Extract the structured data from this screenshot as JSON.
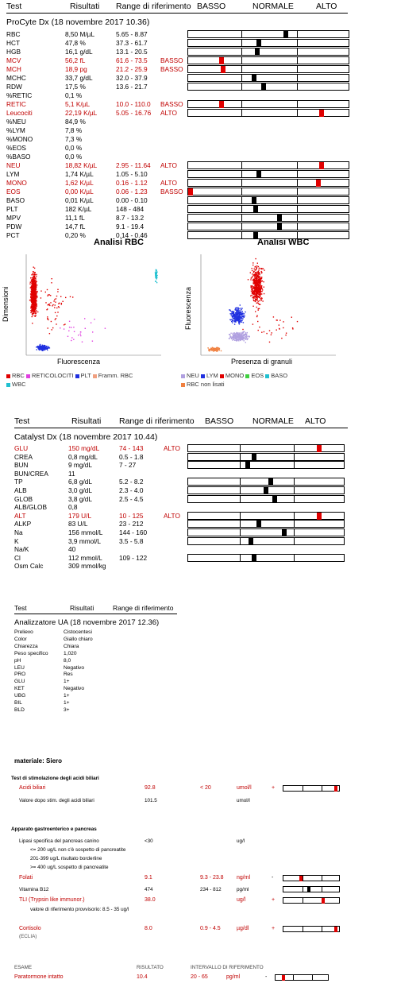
{
  "header1": {
    "test": "Test",
    "results": "Risultati",
    "range": "Range di riferimento",
    "low": "BASSO",
    "normal": "NORMALE",
    "high": "ALTO"
  },
  "procyte": {
    "title": "ProCyte Dx (18 novembre 2017 10.36)",
    "rows": [
      {
        "name": "RBC",
        "value": "8,50 M/µL",
        "range": "5.65 - 8.87",
        "flag": "",
        "marker": 0.61,
        "red": false
      },
      {
        "name": "HCT",
        "value": "47,8 %",
        "range": "37.3 - 61.7",
        "flag": "",
        "marker": 0.44,
        "red": false
      },
      {
        "name": "HGB",
        "value": "16,1 g/dL",
        "range": "13.1 - 20.5",
        "flag": "",
        "marker": 0.43,
        "red": false
      },
      {
        "name": "MCV",
        "value": "56,2 fL",
        "range": "61.6 - 73.5",
        "flag": "BASSO",
        "marker": 0.2,
        "red": true
      },
      {
        "name": "MCH",
        "value": "18,9 pg",
        "range": "21.2 - 25.9",
        "flag": "BASSO",
        "marker": 0.21,
        "red": true
      },
      {
        "name": "MCHC",
        "value": "33,7 g/dL",
        "range": "32.0 - 37.9",
        "flag": "",
        "marker": 0.41,
        "red": false
      },
      {
        "name": "RDW",
        "value": "17,5 %",
        "range": "13.6 - 21.7",
        "flag": "",
        "marker": 0.47,
        "red": false
      },
      {
        "name": "%RETIC",
        "value": "0,1 %",
        "range": "",
        "flag": "",
        "marker": null,
        "red": false
      },
      {
        "name": "RETIC",
        "value": "5,1 K/µL",
        "range": "10.0 - 110.0",
        "flag": "BASSO",
        "marker": 0.2,
        "red": true
      },
      {
        "name": "Leucociti",
        "value": "22,19 K/µL",
        "range": "5.05 - 16.76",
        "flag": "ALTO",
        "marker": 0.84,
        "red": true
      },
      {
        "name": "%NEU",
        "value": "84,9 %",
        "range": "",
        "flag": "",
        "marker": null,
        "red": false
      },
      {
        "name": "%LYM",
        "value": "7,8 %",
        "range": "",
        "flag": "",
        "marker": null,
        "red": false
      },
      {
        "name": "%MONO",
        "value": "7,3 %",
        "range": "",
        "flag": "",
        "marker": null,
        "red": false
      },
      {
        "name": "%EOS",
        "value": "0,0 %",
        "range": "",
        "flag": "",
        "marker": null,
        "red": false
      },
      {
        "name": "%BASO",
        "value": "0,0 %",
        "range": "",
        "flag": "",
        "marker": null,
        "red": false
      },
      {
        "name": "NEU",
        "value": "18,82 K/µL",
        "range": "2.95 - 11.64",
        "flag": "ALTO",
        "marker": 0.84,
        "red": true
      },
      {
        "name": "LYM",
        "value": "1,74 K/µL",
        "range": "1.05 - 5.10",
        "flag": "",
        "marker": 0.44,
        "red": false
      },
      {
        "name": "MONO",
        "value": "1,62 K/µL",
        "range": "0.16 - 1.12",
        "flag": "ALTO",
        "marker": 0.82,
        "red": true
      },
      {
        "name": "EOS",
        "value": "0,00 K/µL",
        "range": "0.06 - 1.23",
        "flag": "BASSO",
        "marker": 0.0,
        "red": true
      },
      {
        "name": "BASO",
        "value": "0,01 K/µL",
        "range": "0.00 - 0.10",
        "flag": "",
        "marker": 0.41,
        "red": false
      },
      {
        "name": "PLT",
        "value": "182 K/µL",
        "range": "148 - 484",
        "flag": "",
        "marker": 0.42,
        "red": false
      },
      {
        "name": "MPV",
        "value": "11,1 fL",
        "range": "8.7 - 13.2",
        "flag": "",
        "marker": 0.57,
        "red": false
      },
      {
        "name": "PDW",
        "value": "14,7 fL",
        "range": "9.1 - 19.4",
        "flag": "",
        "marker": 0.57,
        "red": false
      },
      {
        "name": "PCT",
        "value": "0,20 %",
        "range": "0.14 - 0.46",
        "flag": "",
        "marker": 0.42,
        "red": false
      }
    ]
  },
  "rbc_plot": {
    "title": "Analisi RBC",
    "ylabel": "Dimensioni",
    "xlabel": "Fluorescenza",
    "legend": [
      {
        "label": "RBC",
        "color": "#e00000"
      },
      {
        "label": "RETICOLOCITI",
        "color": "#e040e0"
      },
      {
        "label": "PLT",
        "color": "#2030e0"
      },
      {
        "label": "Framm. RBC",
        "color": "#f0a080"
      },
      {
        "label": "WBC",
        "color": "#20c0d0"
      }
    ]
  },
  "wbc_plot": {
    "title": "Analisi WBC",
    "ylabel": "Fluorescenza",
    "xlabel": "Presenza di granuli",
    "legend": [
      {
        "label": "NEU",
        "color": "#b0a0e0"
      },
      {
        "label": "LYM",
        "color": "#2030e0"
      },
      {
        "label": "MONO",
        "color": "#e00000"
      },
      {
        "label": "EOS",
        "color": "#40d040"
      },
      {
        "label": "BASO",
        "color": "#20c0d0"
      },
      {
        "label": "RBC non lisati",
        "color": "#f08040"
      }
    ]
  },
  "header2": {
    "test": "Test",
    "results": "Risultati",
    "range": "Range di riferimento",
    "low": "BASSO",
    "normal": "NORMALE",
    "high": "ALTO"
  },
  "catalyst": {
    "title": "Catalyst Dx (18 novembre 2017 10.44)",
    "rows": [
      {
        "name": "GLU",
        "value": "150 mg/dL",
        "range": "74 - 143",
        "flag": "ALTO",
        "marker": 0.85,
        "red": true
      },
      {
        "name": "CREA",
        "value": "0,8 mg/dL",
        "range": "0.5 - 1.8",
        "flag": "",
        "marker": 0.42,
        "red": false
      },
      {
        "name": "BUN",
        "value": "9 mg/dL",
        "range": "7 - 27",
        "flag": "",
        "marker": 0.38,
        "red": false
      },
      {
        "name": "BUN/CREA",
        "value": "11",
        "range": "",
        "flag": "",
        "marker": null,
        "red": false
      },
      {
        "name": "TP",
        "value": "6,8 g/dL",
        "range": "5.2 - 8.2",
        "flag": "",
        "marker": 0.53,
        "red": false
      },
      {
        "name": "ALB",
        "value": "3,0 g/dL",
        "range": "2.3 - 4.0",
        "flag": "",
        "marker": 0.5,
        "red": false
      },
      {
        "name": "GLOB",
        "value": "3,8 g/dL",
        "range": "2.5 - 4.5",
        "flag": "",
        "marker": 0.56,
        "red": false
      },
      {
        "name": "ALB/GLOB",
        "value": "0,8",
        "range": "",
        "flag": "",
        "marker": null,
        "red": false
      },
      {
        "name": "ALT",
        "value": "179 U/L",
        "range": "10 - 125",
        "flag": "ALTO",
        "marker": 0.85,
        "red": true
      },
      {
        "name": "ALKP",
        "value": "83 U/L",
        "range": "23 - 212",
        "flag": "",
        "marker": 0.45,
        "red": false
      },
      {
        "name": "Na",
        "value": "156 mmol/L",
        "range": "144 - 160",
        "flag": "",
        "marker": 0.62,
        "red": false
      },
      {
        "name": "K",
        "value": "3,9 mmol/L",
        "range": "3.5 - 5.8",
        "flag": "",
        "marker": 0.4,
        "red": false
      },
      {
        "name": "Na/K",
        "value": "40",
        "range": "",
        "flag": "",
        "marker": null,
        "red": false
      },
      {
        "name": "Cl",
        "value": "112 mmol/L",
        "range": "109 - 122",
        "flag": "",
        "marker": 0.42,
        "red": false
      },
      {
        "name": "Osm Calc",
        "value": "309 mmol/kg",
        "range": "",
        "flag": "",
        "marker": null,
        "red": false
      }
    ]
  },
  "header3": {
    "test": "Test",
    "results": "Risultati",
    "range": "Range di riferimento"
  },
  "ua": {
    "title": "Analizzatore UA (18 novembre 2017 12.36)",
    "rows": [
      {
        "name": "Prelievo",
        "value": "Cistocentesi"
      },
      {
        "name": "Color",
        "value": "Giallo chiaro"
      },
      {
        "name": "Chiarezza",
        "value": "Chiara"
      },
      {
        "name": "Peso specifico",
        "value": "1,020"
      },
      {
        "name": "pH",
        "value": "8,0"
      },
      {
        "name": "LEU",
        "value": "Negativo"
      },
      {
        "name": "PRO",
        "value": "Res"
      },
      {
        "name": "GLU",
        "value": "1+"
      },
      {
        "name": "KET",
        "value": "Negativo"
      },
      {
        "name": "UBG",
        "value": "1+"
      },
      {
        "name": "BIL",
        "value": "1+"
      },
      {
        "name": "BLD",
        "value": "3+"
      }
    ]
  },
  "siero": {
    "title": "materiale: Siero",
    "bile": {
      "title": "Test di stimolazione degli acidi biliari",
      "r1": {
        "name": "Acidi biliari",
        "value": "92.8",
        "range": "< 20",
        "unit": "umol/l",
        "flag": "+",
        "marker": 0.97
      },
      "r2": {
        "name": "Valore dopo stim. degli acidi biliari",
        "value": "101.5",
        "unit": "umol/l"
      }
    },
    "gi": {
      "title": "Apparato gastroenterico e pancreas",
      "lipasi": {
        "name": "Lipasi specifica del pancreas canino",
        "value": "<30",
        "unit": "ug/l",
        "n1": "<= 200 ug/L   non c'è sospetto di pancreatite",
        "n2": "201-399 ug/L   risultato borderline",
        "n3": ">= 400 ug/L   sospetto di pancreatite"
      },
      "folati": {
        "name": "Folati",
        "value": "9.1",
        "range": "9.3 - 23.8",
        "unit": "ng/ml",
        "flag": "-",
        "marker": 0.3
      },
      "b12": {
        "name": "Vitamina B12",
        "value": "474",
        "range": "234 - 812",
        "unit": "pg/ml",
        "marker": 0.45
      },
      "tli": {
        "name": "TLI (Trypsin like immunor.)",
        "value": "38.0",
        "unit": "ug/l",
        "flag": "+",
        "marker": 0.72,
        "note": "valore di riferimento provvisorio: 8.5 - 35 ug/l"
      },
      "cort": {
        "name": "Cortisolo",
        "sub": "(ECLIA)",
        "value": "8.0",
        "range": "0.9 - 4.5",
        "unit": "µg/dl",
        "flag": "+",
        "marker": 0.97
      }
    }
  },
  "esame": {
    "h1": "ESAME",
    "h2": "RISULTATO",
    "h3": "INTERVALLO DI RIFERIMENTO",
    "name": "Paratormone intatto",
    "value": "10.4",
    "range": "20 - 65",
    "unit": "pg/ml",
    "flag": "-",
    "marker": 0.13
  }
}
